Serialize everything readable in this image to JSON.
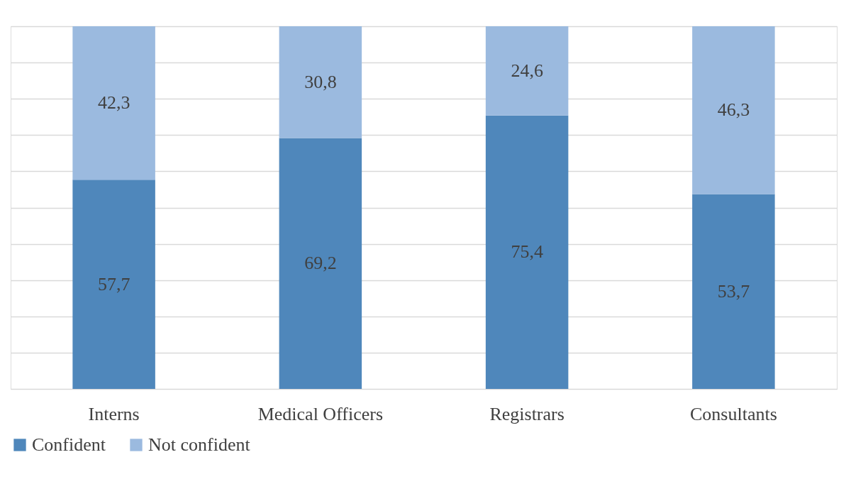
{
  "chart_data": {
    "type": "bar",
    "stacked": true,
    "categories": [
      "Interns",
      "Medical Officers",
      "Registrars",
      "Consultants"
    ],
    "series": [
      {
        "name": "Confident",
        "color": "#4f87bb",
        "values": [
          57.7,
          69.2,
          75.4,
          53.7
        ],
        "value_labels": [
          "57,7",
          "69,2",
          "75,4",
          "53,7"
        ]
      },
      {
        "name": "Not confident",
        "color": "#9bbadf",
        "values": [
          42.3,
          30.8,
          24.6,
          46.3
        ],
        "value_labels": [
          "42,3",
          "30,8",
          "24,6",
          "46,3"
        ]
      }
    ],
    "ylim": [
      0,
      100
    ],
    "yticks": [
      {
        "value": 0,
        "label": null
      },
      {
        "value": 10,
        "label": null
      },
      {
        "value": 20,
        "label": null
      },
      {
        "value": 30,
        "label": null
      },
      {
        "value": 40,
        "label": null
      },
      {
        "value": 50,
        "label": null
      },
      {
        "value": 60,
        "label": null
      },
      {
        "value": 70,
        "label": null
      },
      {
        "value": 80,
        "label": null
      },
      {
        "value": 90,
        "label": null
      },
      {
        "value": 100,
        "label": null
      }
    ],
    "grid": "y",
    "tick_labels": "x",
    "legend": "bottom"
  }
}
